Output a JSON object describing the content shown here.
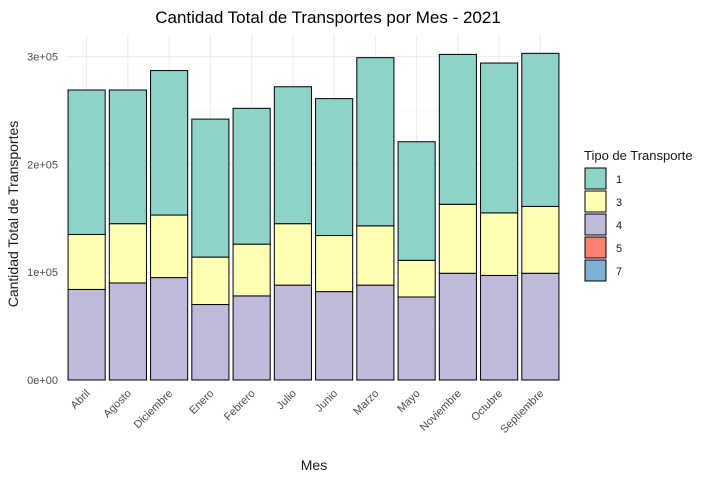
{
  "chart_data": {
    "type": "bar",
    "stacked": true,
    "title": "Cantidad Total de Transportes por Mes - 2021",
    "xlabel": "Mes",
    "ylabel": "Cantidad Total de Transportes",
    "ylim": [
      0,
      320000
    ],
    "yticks": [
      0,
      100000,
      200000,
      300000
    ],
    "ytick_labels": [
      "0e+00",
      "1e+05",
      "2e+05",
      "3e+05"
    ],
    "grid": true,
    "legend": {
      "title": "Tipo de Transporte",
      "placement": "right"
    },
    "categories": [
      "Abril",
      "Agosto",
      "Diciembre",
      "Enero",
      "Febrero",
      "Julio",
      "Junio",
      "Marzo",
      "Mayo",
      "Noviembre",
      "Octubre",
      "Septiembre"
    ],
    "series": [
      {
        "name": "1",
        "color": "#8DD3C7",
        "values": [
          134000,
          124000,
          134000,
          128000,
          126000,
          127000,
          127000,
          156000,
          110000,
          139000,
          139000,
          142000
        ]
      },
      {
        "name": "3",
        "color": "#FFFFB3",
        "values": [
          51000,
          55000,
          58000,
          44000,
          48000,
          57000,
          52000,
          55000,
          34000,
          64000,
          58000,
          62000
        ]
      },
      {
        "name": "4",
        "color": "#BEBADA",
        "values": [
          84000,
          90000,
          95000,
          70000,
          78000,
          88000,
          82000,
          88000,
          77000,
          99000,
          97000,
          99000
        ]
      },
      {
        "name": "5",
        "color": "#FB8072",
        "values": [
          0,
          0,
          0,
          0,
          0,
          0,
          0,
          0,
          0,
          0,
          0,
          0
        ]
      },
      {
        "name": "7",
        "color": "#80B1D3",
        "values": [
          0,
          0,
          0,
          0,
          0,
          0,
          0,
          0,
          0,
          0,
          0,
          0
        ]
      }
    ]
  }
}
